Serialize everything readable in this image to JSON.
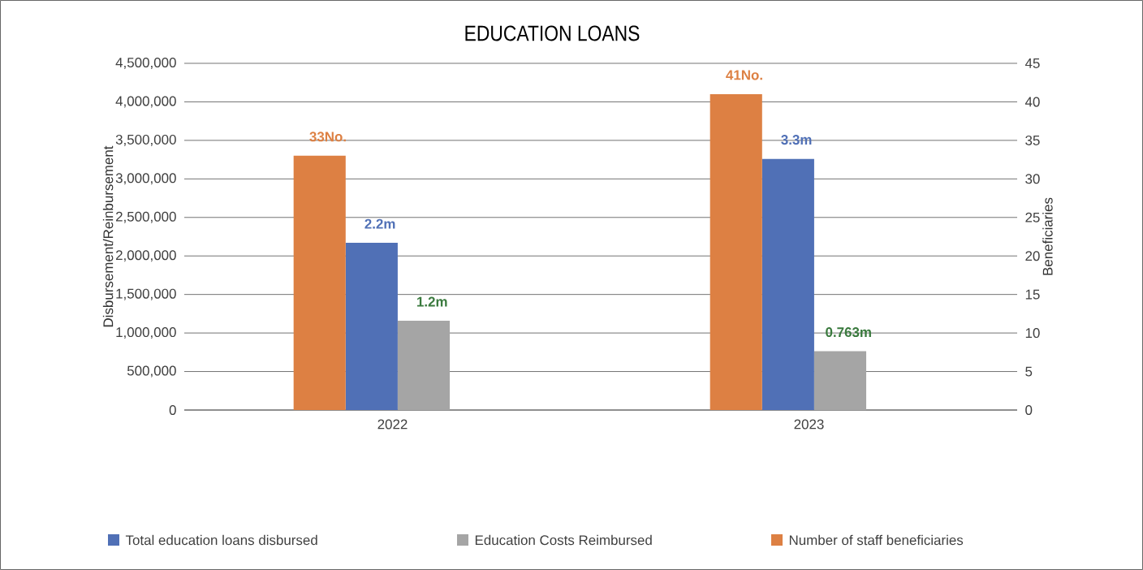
{
  "chart_data": {
    "type": "bar",
    "title": "EDUCATION LOANS",
    "ylabel": "Disbursement/Reinbursement",
    "y2label": "Beneficiaries",
    "categories": [
      "2022",
      "2023"
    ],
    "series": [
      {
        "name": "Total education loans disbursed",
        "color": "#5070b6",
        "values": [
          2170000,
          3260000
        ],
        "value_labels": [
          "2.2m",
          "3.3m"
        ]
      },
      {
        "name": "Education Costs Reimbursed",
        "color": "#a5a5a5",
        "values": [
          1160000,
          763000
        ],
        "value_labels": [
          "1.2m",
          "0.763m"
        ]
      },
      {
        "name": "Number of staff beneficiaries",
        "color": "#dd8043",
        "values": [
          33,
          41
        ],
        "value_labels": [
          "33No.",
          "41No."
        ],
        "axis": "y2"
      }
    ],
    "ylim": [
      0,
      4500000
    ],
    "yticks": [
      0,
      {
        "value": 500000,
        "label": "500,000"
      },
      {
        "value": 1000000,
        "label": "1,000,000"
      },
      {
        "value": 1500000,
        "label": "1,500,000"
      },
      {
        "value": 2000000,
        "label": "2,000,000"
      },
      {
        "value": 2500000,
        "label": "2,500,000"
      },
      {
        "value": 3000000,
        "label": "3,000,000"
      },
      {
        "value": 3500000,
        "label": "3,500,000"
      },
      {
        "value": 4000000,
        "label": "4,000,000"
      },
      {
        "value": 4500000,
        "label": "4,500,000"
      }
    ],
    "y2lim": [
      0,
      45
    ],
    "y2ticks": [
      0,
      5,
      10,
      15,
      20,
      25,
      30,
      35,
      40,
      45
    ],
    "grid": "y",
    "legend": "bottom"
  }
}
